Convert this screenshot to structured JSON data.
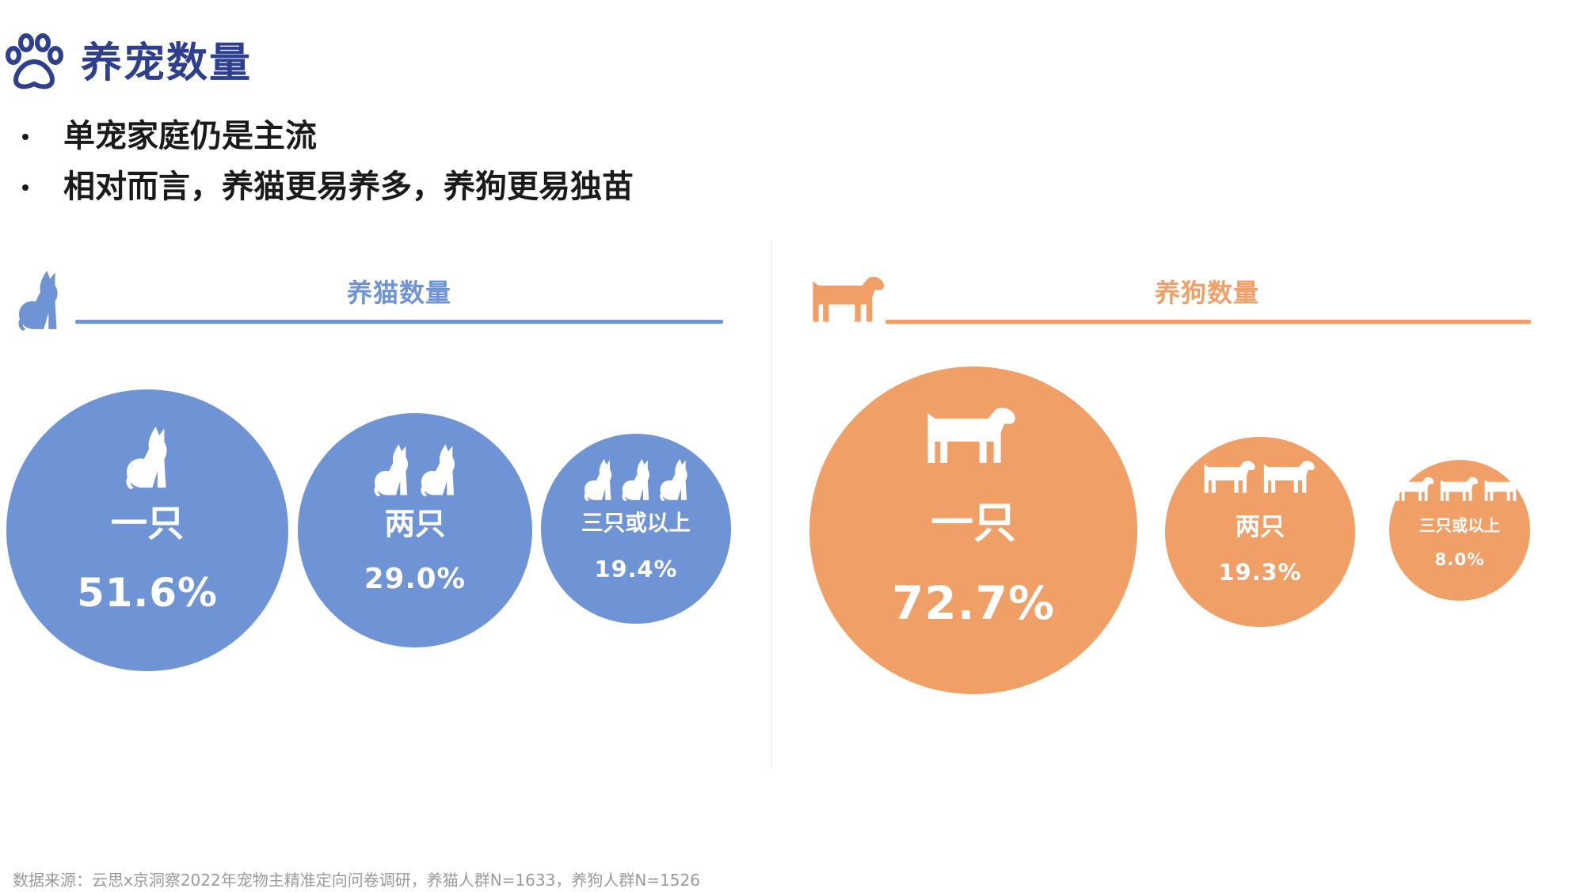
{
  "page": {
    "title": "养宠数量",
    "bullets": [
      "单宠家庭仍是主流",
      "相对而言，养猫更易养多，养狗更易独苗"
    ],
    "source": "数据来源：云思x京洞察2022年宠物主精准定向问卷调研，养猫人群N=1633，养狗人群N=1526"
  },
  "colors": {
    "cat": "#6f94d6",
    "dog": "#f0a066",
    "title": "#2f3f8f"
  },
  "icons": {
    "header": "paw-icon",
    "cat_panel": "cat-icon",
    "dog_panel": "dog-icon"
  },
  "chart_data": [
    {
      "type": "bubble",
      "title": "养猫数量",
      "categories": [
        "一只",
        "两只",
        "三只或以上"
      ],
      "values": [
        51.6,
        29.0,
        19.4
      ],
      "value_labels": [
        "51.6%",
        "29.0%",
        "19.4%"
      ],
      "unit": "%",
      "color": "#6f94d6"
    },
    {
      "type": "bubble",
      "title": "养狗数量",
      "categories": [
        "一只",
        "两只",
        "三只或以上"
      ],
      "values": [
        72.7,
        19.3,
        8.0
      ],
      "value_labels": [
        "72.7%",
        "19.3%",
        "8.0%"
      ],
      "unit": "%",
      "color": "#f0a066"
    }
  ]
}
